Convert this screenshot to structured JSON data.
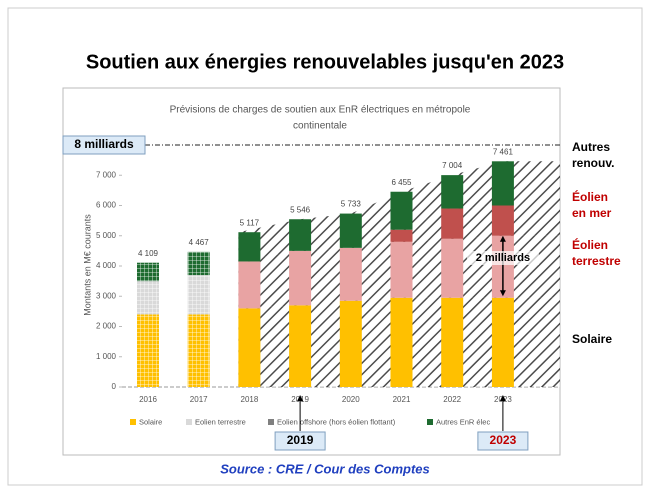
{
  "chart_data": {
    "type": "bar_area",
    "title": "Soutien aux énergies renouvelables jusqu'en 2023",
    "subtitle": [
      "Prévisions de charges de soutien aux EnR électriques en métropole",
      "continentale"
    ],
    "y_label": "Montants en M€ courants",
    "categories": [
      "2016",
      "2017",
      "2018",
      "2019",
      "2020",
      "2021",
      "2022",
      "2023"
    ],
    "series": [
      {
        "name": "Solaire",
        "color": "#ffc000",
        "values": [
          2400,
          2400,
          2600,
          2700,
          2850,
          2950,
          2950,
          2950
        ]
      },
      {
        "name": "Eolien terrestre",
        "color": "#e8a3a3",
        "values": [
          1100,
          1300,
          1550,
          1800,
          1750,
          1850,
          1950,
          2050
        ]
      },
      {
        "name": "Eolien offshore (hors éolien flottant)",
        "color": "#c0504d",
        "values": [
          0,
          0,
          0,
          0,
          0,
          400,
          1000,
          1000
        ]
      },
      {
        "name": "Autres EnR élec",
        "color": "#1e6b30",
        "values": [
          609,
          767,
          967,
          1046,
          1133,
          1255,
          1104,
          1461
        ]
      }
    ],
    "totals": [
      4109,
      4467,
      5117,
      5546,
      5733,
      6455,
      7004,
      7461
    ],
    "total_labels": [
      "4 109",
      "4 467",
      "5 117",
      "5 546",
      "5 733",
      "6 455",
      "7 004",
      "7 461"
    ],
    "projection_start": 2,
    "ylim": [
      0,
      8000
    ],
    "yticks": [
      0,
      {
        "value": 1000,
        "label": "1 000"
      },
      {
        "value": 2000,
        "label": "2 000"
      },
      {
        "value": 3000,
        "label": "3 000"
      },
      {
        "value": 4000,
        "label": "4 000"
      },
      {
        "value": 5000,
        "label": "5 000"
      },
      {
        "value": 6000,
        "label": "6 000"
      },
      {
        "value": 7000,
        "label": "7 000"
      }
    ],
    "threshold": {
      "value": 8000,
      "label": "8 milliards"
    },
    "gap_annotation": {
      "from": 3000,
      "to": 5000,
      "label": "2 milliards"
    },
    "side_labels": [
      {
        "lines": [
          "Autres",
          "renouv."
        ],
        "color": "#000000"
      },
      {
        "lines": [
          "Éolien",
          "en mer"
        ],
        "color": "#c00000"
      },
      {
        "lines": [
          "Éolien",
          "terrestre"
        ],
        "color": "#c00000"
      },
      {
        "lines": [
          "Solaire"
        ],
        "color": "#000000"
      }
    ],
    "highlights": [
      {
        "label": "2019",
        "color": "#000000"
      },
      {
        "label": "2023",
        "color": "#c00000"
      }
    ],
    "source": "Source : CRE / Cour des Comptes"
  }
}
